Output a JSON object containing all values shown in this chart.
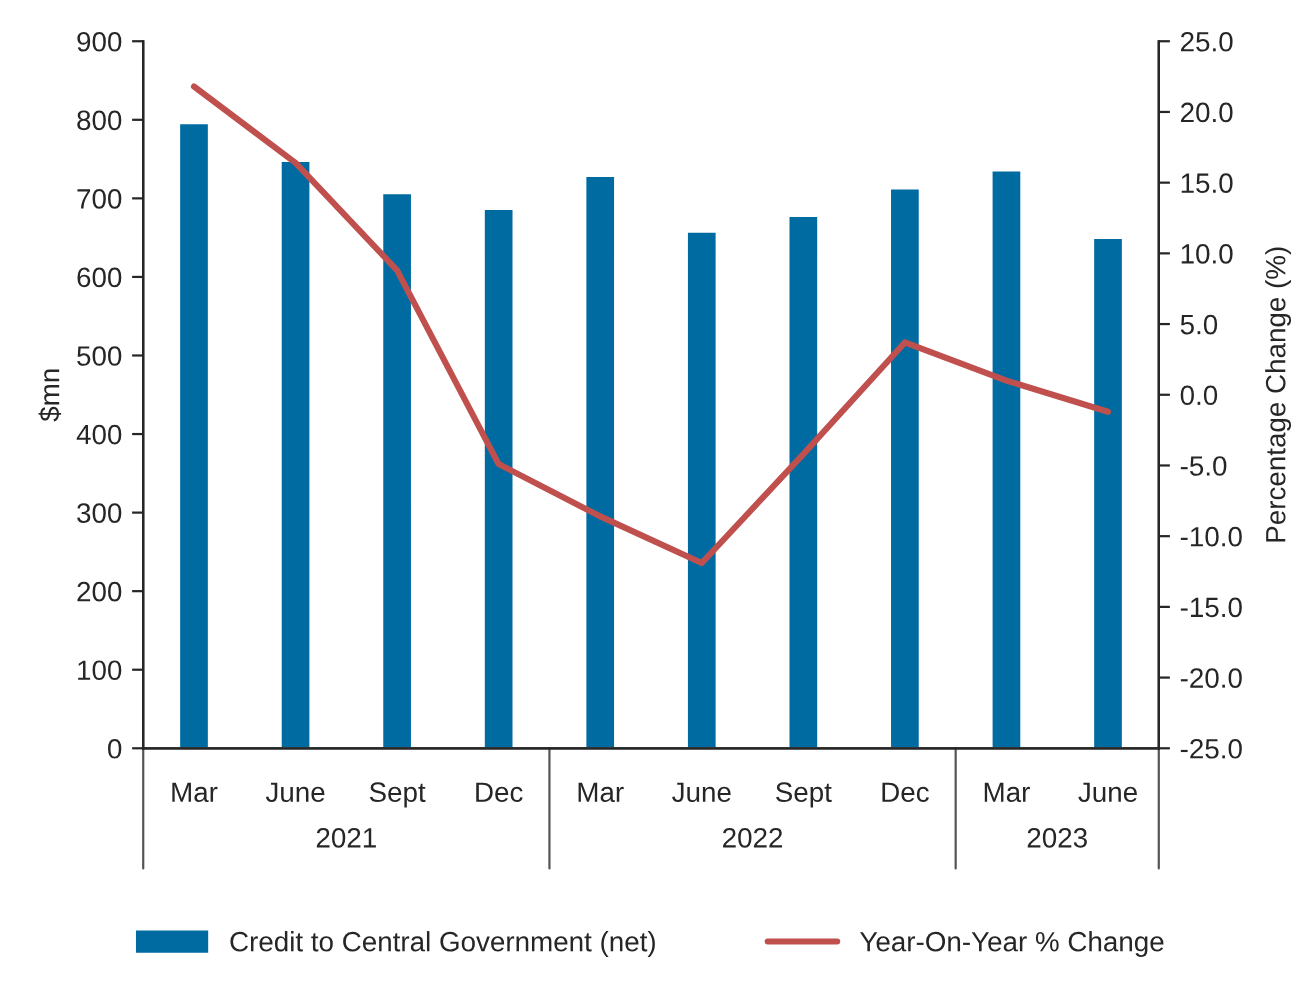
{
  "chart_data": {
    "type": "bar",
    "ylabel": "$mn",
    "y2label": "Percentage Change (%)",
    "categories": [
      "Mar",
      "June",
      "Sept",
      "Dec",
      "Mar",
      "June",
      "Sept",
      "Dec",
      "Mar",
      "June"
    ],
    "series": [
      {
        "name": "Credit to Central Government (net)",
        "color": "#006ba1",
        "values": [
          796,
          748,
          707,
          687,
          729,
          658,
          678,
          713,
          736,
          650
        ]
      },
      {
        "name": "Year-On-Year % Change",
        "type": "line",
        "axis": "y2",
        "color": "#c0504d",
        "values": [
          21.8,
          16.4,
          8.8,
          -4.9,
          -8.6,
          -11.9,
          -4.2,
          3.7,
          1.0,
          -1.2
        ]
      }
    ],
    "ylim": [
      0,
      900
    ],
    "yticks": [
      0,
      100,
      200,
      300,
      400,
      500,
      600,
      700,
      800,
      900
    ],
    "y2lim": [
      -25,
      25
    ],
    "y2ticks": [
      {
        "value": -25,
        "label": "-25.0"
      },
      {
        "value": -20,
        "label": "-20.0"
      },
      {
        "value": -15,
        "label": "-15.0"
      },
      {
        "value": -10,
        "label": "-10.0"
      },
      {
        "value": -5,
        "label": "-5.0"
      },
      {
        "value": 0,
        "label": "0.0"
      },
      {
        "value": 5,
        "label": "5.0"
      },
      {
        "value": 10,
        "label": "10.0"
      },
      {
        "value": 15,
        "label": "15.0"
      },
      {
        "value": 20,
        "label": "20.0"
      },
      {
        "value": 25,
        "label": "25.0"
      }
    ],
    "annotations": [
      "2021",
      "2022",
      "2023"
    ],
    "legend": "bottom",
    "grid": false
  }
}
